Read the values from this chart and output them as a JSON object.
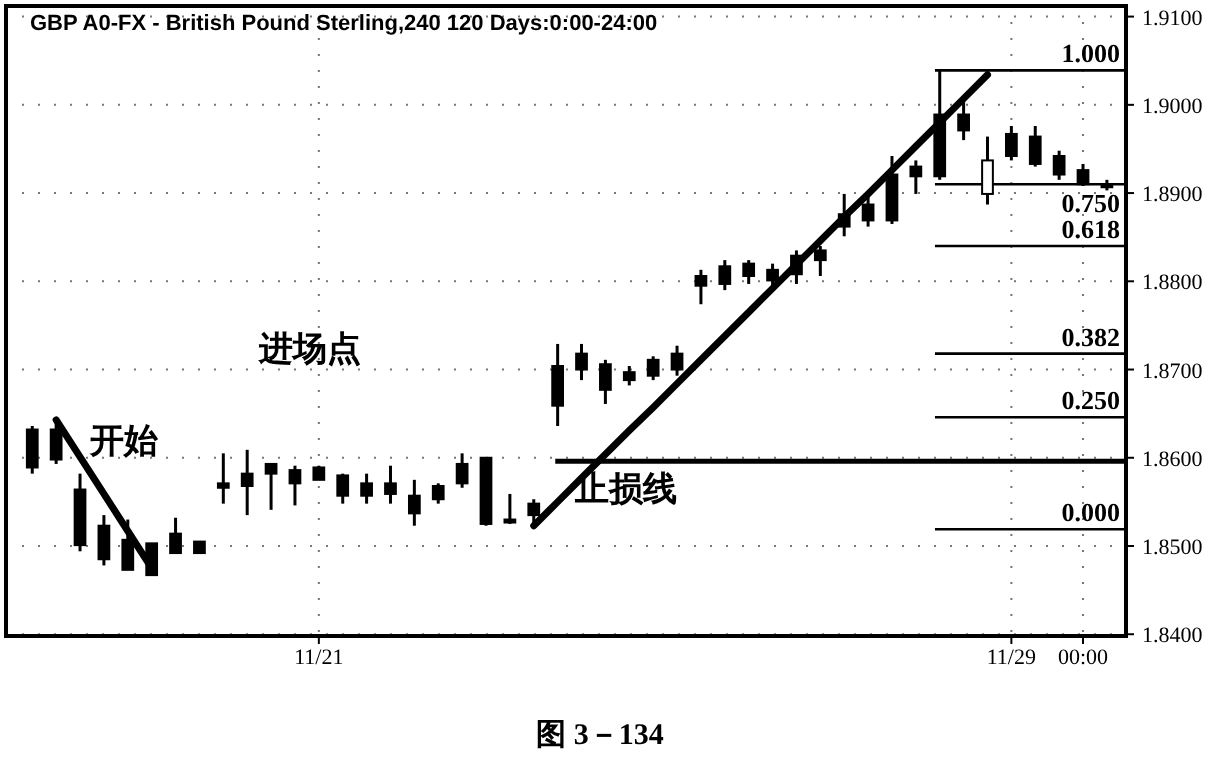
{
  "chart_data": {
    "type": "candlestick",
    "title": "GBP A0-FX - British Pound Sterling,240  120 Days:0:00-24:00",
    "categories": [
      null,
      null,
      null,
      null,
      null,
      null,
      null,
      null,
      null,
      null,
      null,
      null,
      "11/21",
      null,
      null,
      null,
      null,
      null,
      null,
      null,
      null,
      null,
      null,
      null,
      null,
      null,
      null,
      null,
      null,
      null,
      null,
      null,
      null,
      null,
      null,
      null,
      null,
      null,
      null,
      null,
      null,
      "11/29",
      null,
      null,
      "00:00",
      null
    ],
    "ohlc": [
      [
        1.8632,
        1.8636,
        1.8582,
        1.8589
      ],
      [
        1.8632,
        1.8643,
        1.8593,
        1.8598
      ],
      [
        1.8564,
        1.8582,
        1.8494,
        1.8501
      ],
      [
        1.8523,
        1.8535,
        1.8478,
        1.8485
      ],
      [
        1.8507,
        1.853,
        1.8473,
        1.8473
      ],
      [
        1.8503,
        1.8503,
        1.8467,
        1.8467
      ],
      [
        1.8514,
        1.8532,
        1.8492,
        1.8492
      ],
      [
        1.8505,
        1.8505,
        1.8492,
        1.8492
      ],
      [
        1.8571,
        1.8605,
        1.8548,
        1.8566
      ],
      [
        1.8582,
        1.8609,
        1.8535,
        1.8568
      ],
      [
        1.8593,
        1.8593,
        1.8541,
        1.8582
      ],
      [
        1.8586,
        1.8591,
        1.8546,
        1.8571
      ],
      [
        1.8589,
        1.8591,
        1.8575,
        1.8575
      ],
      [
        1.858,
        1.8582,
        1.8548,
        1.8557
      ],
      [
        1.8571,
        1.8582,
        1.8548,
        1.8557
      ],
      [
        1.8571,
        1.8591,
        1.8548,
        1.8559
      ],
      [
        1.8557,
        1.8575,
        1.8523,
        1.8537
      ],
      [
        1.8568,
        1.8571,
        1.8548,
        1.8553
      ],
      [
        1.8593,
        1.8605,
        1.8566,
        1.8571
      ],
      [
        1.86,
        1.86,
        1.8523,
        1.8525
      ],
      [
        1.853,
        1.8559,
        1.8525,
        1.8528
      ],
      [
        1.8548,
        1.8553,
        1.8525,
        1.8535
      ],
      [
        1.8704,
        1.8729,
        1.8636,
        1.8659
      ],
      [
        1.8718,
        1.8729,
        1.8688,
        1.87
      ],
      [
        1.8706,
        1.8711,
        1.8661,
        1.8677
      ],
      [
        1.8697,
        1.8704,
        1.8682,
        1.8688
      ],
      [
        1.8711,
        1.8715,
        1.8688,
        1.8693
      ],
      [
        1.8718,
        1.8727,
        1.8693,
        1.87
      ],
      [
        1.8806,
        1.8813,
        1.8774,
        1.8795
      ],
      [
        1.8817,
        1.8824,
        1.879,
        1.8797
      ],
      [
        1.882,
        1.8824,
        1.8797,
        1.8806
      ],
      [
        1.8813,
        1.882,
        1.8795,
        1.8801
      ],
      [
        1.8829,
        1.8835,
        1.8797,
        1.8808
      ],
      [
        1.8835,
        1.884,
        1.8806,
        1.8824
      ],
      [
        1.8876,
        1.8899,
        1.8851,
        1.8862
      ],
      [
        1.8887,
        1.8896,
        1.8862,
        1.8869
      ],
      [
        1.8921,
        1.8942,
        1.8865,
        1.8869
      ],
      [
        1.893,
        1.8937,
        1.8899,
        1.8919
      ],
      [
        1.8989,
        1.9039,
        1.8915,
        1.8919
      ],
      [
        1.8989,
        1.901,
        1.896,
        1.8971
      ],
      [
        1.8899,
        1.8964,
        1.8887,
        1.8937
      ],
      [
        1.8967,
        1.8976,
        1.8937,
        1.8942
      ],
      [
        1.8964,
        1.8976,
        1.893,
        1.8933
      ],
      [
        1.8942,
        1.8948,
        1.8915,
        1.8921
      ],
      [
        1.8926,
        1.8933,
        1.8908,
        1.891
      ],
      [
        1.891,
        1.8915,
        1.8903,
        1.8908
      ]
    ],
    "colors": [
      "#000000",
      "#000000",
      "#000000",
      "#000000",
      "#000000",
      "#000000",
      "#000000",
      "#000000",
      "#000000",
      "#000000",
      "#000000",
      "#000000",
      "#000000",
      "#000000",
      "#000000",
      "#000000",
      "#000000",
      "#000000",
      "#000000",
      "#000000",
      "#000000",
      "#000000",
      "#000000",
      "#000000",
      "#000000",
      "#000000",
      "#000000",
      "#000000",
      "#000000",
      "#000000",
      "#000000",
      "#000000",
      "#000000",
      "#000000",
      "#000000",
      "#000000",
      "#000000",
      "#000000",
      "#000000",
      "#000000",
      "#ffffff",
      "#000000",
      "#000000",
      "#000000",
      "#000000",
      "#000000"
    ],
    "series": [
      {
        "type": "line",
        "color": "#000000",
        "values": [
          null,
          1.8643,
          1.8601,
          1.8559,
          1.8517,
          1.8475,
          null,
          null,
          null,
          null,
          null,
          null,
          null,
          null,
          null,
          null,
          null,
          null,
          null,
          null,
          null,
          null,
          null,
          null,
          null,
          null,
          null,
          null,
          null,
          null,
          null,
          null,
          null,
          null,
          null,
          null,
          null,
          null,
          null,
          null,
          null,
          null,
          null,
          null,
          null,
          null
        ]
      },
      {
        "type": "line",
        "color": "#000000",
        "values": [
          null,
          null,
          null,
          null,
          null,
          null,
          null,
          null,
          null,
          null,
          null,
          null,
          null,
          null,
          null,
          null,
          null,
          null,
          null,
          null,
          null,
          1.8523,
          1.855,
          1.8577,
          1.8604,
          1.8631,
          1.8657,
          1.8684,
          1.8711,
          1.8738,
          1.8765,
          1.8792,
          1.8819,
          1.8846,
          1.8873,
          1.8899,
          1.8926,
          1.8953,
          1.898,
          1.9007,
          1.9034,
          null,
          null,
          null,
          null,
          null
        ]
      }
    ],
    "ref_lines": [
      {
        "axis": "y",
        "value": 1.9039
      },
      {
        "axis": "y",
        "value": 1.891
      },
      {
        "axis": "y",
        "value": 1.884
      },
      {
        "axis": "y",
        "value": 1.8718
      },
      {
        "axis": "y",
        "value": 1.8646
      },
      {
        "axis": "y",
        "value": 1.8519
      },
      {
        "axis": "y",
        "value": 1.8596
      }
    ],
    "annotations": [
      "开始",
      "进场点",
      "止损线",
      {
        "text": "1.000",
        "x": "00:00",
        "y": 1.9039
      },
      {
        "text": "0.750",
        "x": "00:00",
        "y": 1.891
      },
      {
        "text": "0.618",
        "x": "00:00",
        "y": 1.884
      },
      {
        "text": "0.382",
        "x": "00:00",
        "y": 1.8718
      },
      {
        "text": "0.250",
        "x": "00:00",
        "y": 1.8646
      },
      {
        "text": "0.000",
        "x": "00:00",
        "y": 1.8519
      },
      "图 3－134"
    ],
    "ylim": [
      1.8398,
      1.9112
    ],
    "yticks": [
      {
        "value": 1.84,
        "label": "1.8400"
      },
      {
        "value": 1.85,
        "label": "1.8500"
      },
      {
        "value": 1.86,
        "label": "1.8600"
      },
      {
        "value": 1.87,
        "label": "1.8700"
      },
      {
        "value": 1.88,
        "label": "1.8800"
      },
      {
        "value": 1.89,
        "label": "1.8900"
      },
      {
        "value": 1.9,
        "label": "1.9000"
      },
      {
        "value": 1.91,
        "label": "1.9100"
      }
    ],
    "grid": true
  }
}
